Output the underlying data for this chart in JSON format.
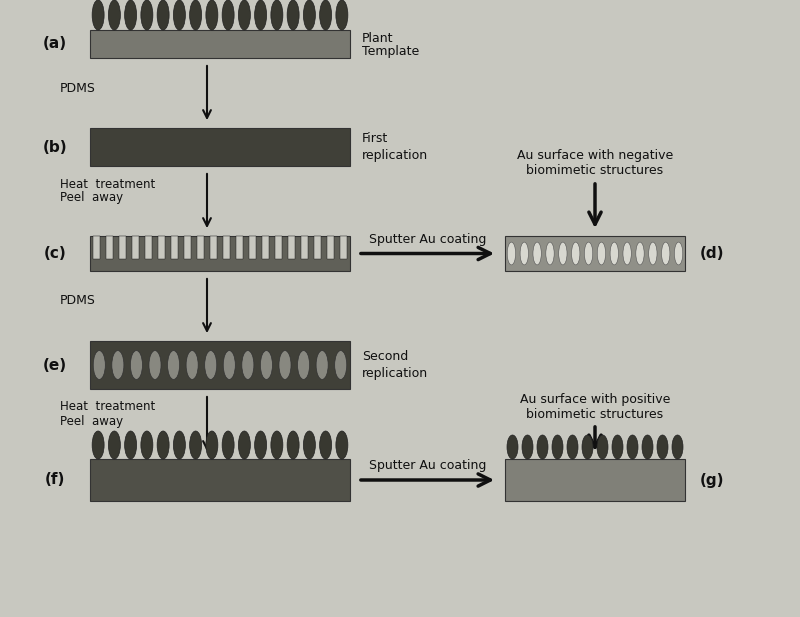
{
  "bg_color": "#c8c8c0",
  "panel_color_a": "#787870",
  "panel_color_b": "#404038",
  "panel_color_c": "#606058",
  "panel_color_d": "#909088",
  "panel_color_e": "#404038",
  "panel_color_f": "#505048",
  "panel_color_g": "#808078",
  "spike_color": "#383830",
  "arrow_color": "#101010",
  "text_color": "#101010",
  "labels": {
    "a": "(a)",
    "b": "(b)",
    "c": "(c)",
    "d": "(d)",
    "e": "(e)",
    "f": "(f)",
    "g": "(g)"
  },
  "annotations": {
    "plant_template_1": "Plant",
    "plant_template_2": "Template",
    "pdms1": "PDMS",
    "first_rep_1": "First",
    "first_rep_2": "replication",
    "heat1_1": "Heat  treatment",
    "heat1_2": "Peel  away",
    "sputter1": "Sputter Au coating",
    "au_neg_1": "Au surface with negative",
    "au_neg_2": "biomimetic structures",
    "pdms2": "PDMS",
    "second_rep_1": "Second",
    "second_rep_2": "replication",
    "heat2_1": "Heat  treatment",
    "heat2_2": "Peel  away",
    "sputter2": "Sputter Au coating",
    "au_pos_1": "Au surface with positive",
    "au_pos_2": "biomimetic structures"
  }
}
